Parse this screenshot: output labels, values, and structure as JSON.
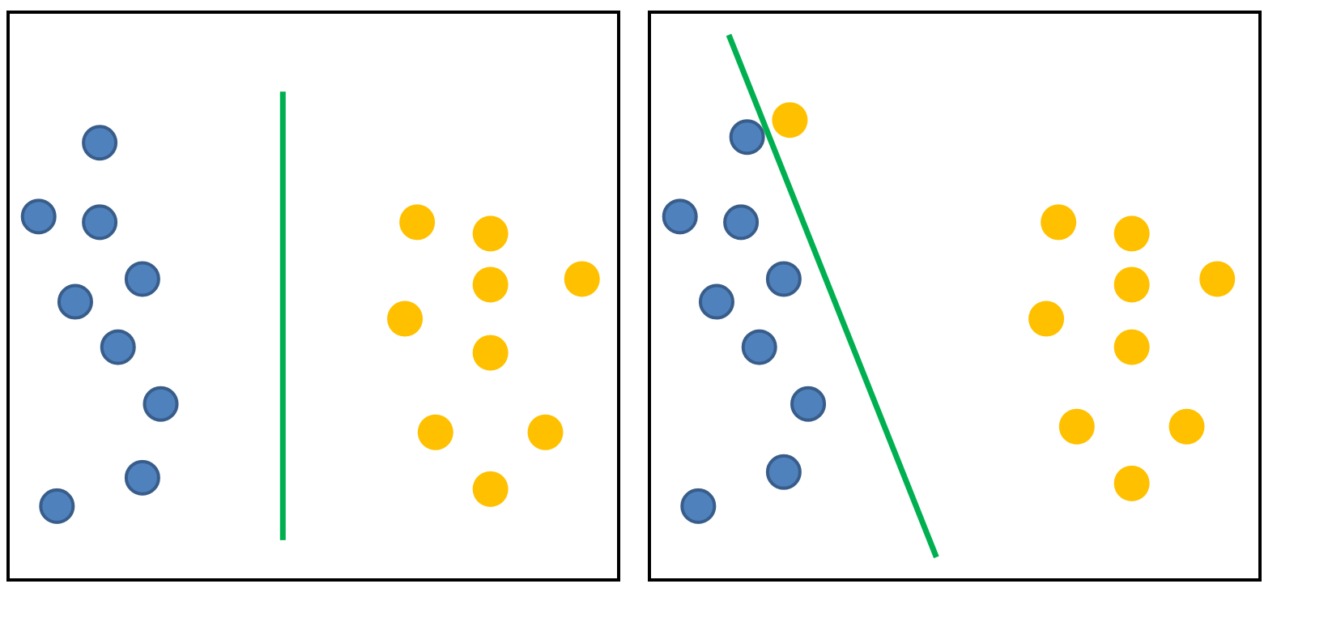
{
  "colors": {
    "frame": "#000000",
    "class_a_fill": "#4F81BD",
    "class_a_stroke": "#385D8A",
    "class_b_fill": "#FFC000",
    "separator": "#00B050",
    "background": "#FFFFFF"
  },
  "panels": [
    {
      "id": "left",
      "class_a_points": [
        [
          0.15,
          0.23
        ],
        [
          0.05,
          0.36
        ],
        [
          0.15,
          0.37
        ],
        [
          0.22,
          0.47
        ],
        [
          0.11,
          0.51
        ],
        [
          0.18,
          0.59
        ],
        [
          0.25,
          0.69
        ],
        [
          0.22,
          0.82
        ],
        [
          0.08,
          0.87
        ]
      ],
      "class_b_points": [
        [
          0.67,
          0.37
        ],
        [
          0.79,
          0.39
        ],
        [
          0.94,
          0.47
        ],
        [
          0.79,
          0.48
        ],
        [
          0.65,
          0.54
        ],
        [
          0.79,
          0.6
        ],
        [
          0.7,
          0.74
        ],
        [
          0.88,
          0.74
        ],
        [
          0.79,
          0.84
        ]
      ],
      "separator": [
        [
          0.45,
          0.14
        ],
        [
          0.45,
          0.93
        ]
      ]
    },
    {
      "id": "right",
      "class_a_points": [
        [
          0.16,
          0.22
        ],
        [
          0.05,
          0.36
        ],
        [
          0.15,
          0.37
        ],
        [
          0.22,
          0.47
        ],
        [
          0.11,
          0.51
        ],
        [
          0.18,
          0.59
        ],
        [
          0.26,
          0.69
        ],
        [
          0.22,
          0.81
        ],
        [
          0.08,
          0.87
        ]
      ],
      "class_b_points": [
        [
          0.23,
          0.19
        ],
        [
          0.67,
          0.37
        ],
        [
          0.79,
          0.39
        ],
        [
          0.93,
          0.47
        ],
        [
          0.79,
          0.48
        ],
        [
          0.65,
          0.54
        ],
        [
          0.79,
          0.59
        ],
        [
          0.7,
          0.73
        ],
        [
          0.88,
          0.73
        ],
        [
          0.79,
          0.83
        ]
      ],
      "separator": [
        [
          0.13,
          0.04
        ],
        [
          0.47,
          0.96
        ]
      ]
    }
  ]
}
